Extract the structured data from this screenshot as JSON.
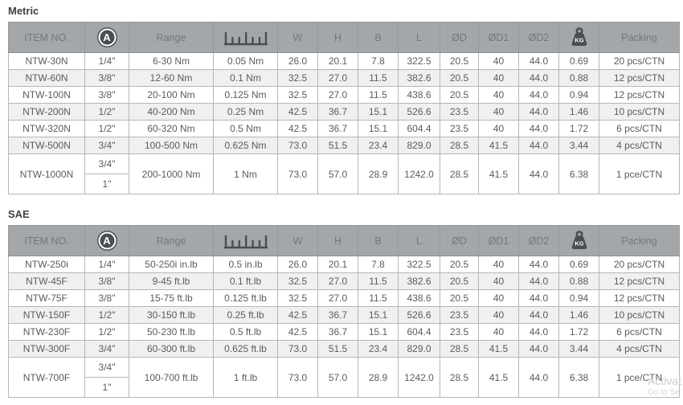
{
  "colors": {
    "header_bg": "#a3a7aa",
    "header_text": "#74787b",
    "body_text": "#595b5e",
    "alt_row_bg": "#f0f0f1",
    "border": "#b3b6b8",
    "icon": "#4b4e51",
    "title_text": "#3e4144",
    "watermark": "#ccccc6"
  },
  "icons": {
    "drive": "square-drive-icon",
    "graduation": "graduation-ruler-icon",
    "weight": "weight-kg-icon"
  },
  "headers": {
    "item": "ITEM NO.",
    "drive_icon_letter": "A",
    "range": "Range",
    "w": "W",
    "h": "H",
    "b": "B",
    "l": "L",
    "d": "ØD",
    "d1": "ØD1",
    "d2": "ØD2",
    "weight_unit": "KG",
    "packing": "Packing"
  },
  "tables": [
    {
      "title": "Metric",
      "rows": [
        {
          "item": "NTW-30N",
          "drive": "1/4\"",
          "range": "6-30 Nm",
          "grad": "0.05 Nm",
          "w": "26.0",
          "h": "20.1",
          "b": "7.8",
          "l": "322.5",
          "d": "20.5",
          "d1": "40",
          "d2": "44.0",
          "kg": "0.69",
          "packing": "20 pcs/CTN"
        },
        {
          "item": "NTW-60N",
          "drive": "3/8\"",
          "range": "12-60 Nm",
          "grad": "0.1 Nm",
          "w": "32.5",
          "h": "27.0",
          "b": "11.5",
          "l": "382.6",
          "d": "20.5",
          "d1": "40",
          "d2": "44.0",
          "kg": "0.88",
          "packing": "12 pcs/CTN"
        },
        {
          "item": "NTW-100N",
          "drive": "3/8\"",
          "range": "20-100 Nm",
          "grad": "0.125 Nm",
          "w": "32.5",
          "h": "27.0",
          "b": "11.5",
          "l": "438.6",
          "d": "20.5",
          "d1": "40",
          "d2": "44.0",
          "kg": "0.94",
          "packing": "12 pcs/CTN"
        },
        {
          "item": "NTW-200N",
          "drive": "1/2\"",
          "range": "40-200 Nm",
          "grad": "0.25 Nm",
          "w": "42.5",
          "h": "36.7",
          "b": "15.1",
          "l": "526.6",
          "d": "23.5",
          "d1": "40",
          "d2": "44.0",
          "kg": "1.46",
          "packing": "10 pcs/CTN"
        },
        {
          "item": "NTW-320N",
          "drive": "1/2\"",
          "range": "60-320 Nm",
          "grad": "0.5 Nm",
          "w": "42.5",
          "h": "36.7",
          "b": "15.1",
          "l": "604.4",
          "d": "23.5",
          "d1": "40",
          "d2": "44.0",
          "kg": "1.72",
          "packing": "6 pcs/CTN"
        },
        {
          "item": "NTW-500N",
          "drive": "3/4\"",
          "range": "100-500 Nm",
          "grad": "0.625 Nm",
          "w": "73.0",
          "h": "51.5",
          "b": "23.4",
          "l": "829.0",
          "d": "28.5",
          "d1": "41.5",
          "d2": "44.0",
          "kg": "3.44",
          "packing": "4 pcs/CTN"
        },
        {
          "item": "NTW-1000N",
          "drive": [
            "3/4\"",
            "1\""
          ],
          "range": "200-1000 Nm",
          "grad": "1 Nm",
          "w": "73.0",
          "h": "57.0",
          "b": "28.9",
          "l": "1242.0",
          "d": "28.5",
          "d1": "41.5",
          "d2": "44.0",
          "kg": "6.38",
          "packing": "1 pce/CTN"
        }
      ]
    },
    {
      "title": "SAE",
      "rows": [
        {
          "item": "NTW-250i",
          "drive": "1/4\"",
          "range": "50-250i in.lb",
          "grad": "0.5 in.lb",
          "w": "26.0",
          "h": "20.1",
          "b": "7.8",
          "l": "322.5",
          "d": "20.5",
          "d1": "40",
          "d2": "44.0",
          "kg": "0.69",
          "packing": "20 pcs/CTN"
        },
        {
          "item": "NTW-45F",
          "drive": "3/8\"",
          "range": "9-45 ft.lb",
          "grad": "0.1 ft.lb",
          "w": "32.5",
          "h": "27.0",
          "b": "11.5",
          "l": "382.6",
          "d": "20.5",
          "d1": "40",
          "d2": "44.0",
          "kg": "0.88",
          "packing": "12 pcs/CTN"
        },
        {
          "item": "NTW-75F",
          "drive": "3/8\"",
          "range": "15-75 ft.lb",
          "grad": "0.125 ft.lb",
          "w": "32.5",
          "h": "27.0",
          "b": "11.5",
          "l": "438.6",
          "d": "20.5",
          "d1": "40",
          "d2": "44.0",
          "kg": "0.94",
          "packing": "12 pcs/CTN"
        },
        {
          "item": "NTW-150F",
          "drive": "1/2\"",
          "range": "30-150 ft.lb",
          "grad": "0.25 ft.lb",
          "w": "42.5",
          "h": "36.7",
          "b": "15.1",
          "l": "526.6",
          "d": "23.5",
          "d1": "40",
          "d2": "44.0",
          "kg": "1.46",
          "packing": "10 pcs/CTN"
        },
        {
          "item": "NTW-230F",
          "drive": "1/2\"",
          "range": "50-230 ft.lb",
          "grad": "0.5 ft.lb",
          "w": "42.5",
          "h": "36.7",
          "b": "15.1",
          "l": "604.4",
          "d": "23.5",
          "d1": "40",
          "d2": "44.0",
          "kg": "1.72",
          "packing": "6 pcs/CTN"
        },
        {
          "item": "NTW-300F",
          "drive": "3/4\"",
          "range": "60-300 ft.lb",
          "grad": "0.625 ft.lb",
          "w": "73.0",
          "h": "51.5",
          "b": "23.4",
          "l": "829.0",
          "d": "28.5",
          "d1": "41.5",
          "d2": "44.0",
          "kg": "3.44",
          "packing": "4 pcs/CTN"
        },
        {
          "item": "NTW-700F",
          "drive": [
            "3/4\"",
            "1\""
          ],
          "range": "100-700 ft.lb",
          "grad": "1 ft.lb",
          "w": "73.0",
          "h": "57.0",
          "b": "28.9",
          "l": "1242.0",
          "d": "28.5",
          "d1": "41.5",
          "d2": "44.0",
          "kg": "6.38",
          "packing": "1 pce/CTN"
        }
      ]
    }
  ],
  "watermark": {
    "line1": "Activat",
    "line2": "Go to Se"
  }
}
